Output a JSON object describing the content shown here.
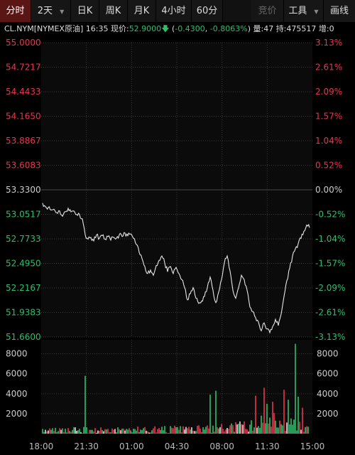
{
  "toolbar": {
    "tabs": [
      {
        "label": "分时",
        "active": true
      },
      {
        "label": "2天",
        "has_dropdown": true
      },
      {
        "label": "日K"
      },
      {
        "label": "周K"
      },
      {
        "label": "月K"
      },
      {
        "label": "4小时"
      },
      {
        "label": "60分"
      }
    ],
    "right": [
      {
        "label": "竞价",
        "disabled": true
      },
      {
        "label": "工具",
        "has_dropdown": true
      },
      {
        "label": "画线"
      }
    ]
  },
  "info": {
    "symbol": "CL.NYM[NYMEX原油]",
    "time": "16:35",
    "price_label": "现价:",
    "price": "52.9000",
    "arrow": "down",
    "change_open": "(",
    "change": "-0.4300",
    "pct_change": "-0.8063%",
    "change_close": ")",
    "volume": "量:47",
    "open_interest": "持:475517",
    "increase": "增:0"
  },
  "colors": {
    "up": "#e8364b",
    "down": "#2fbf6b",
    "neutral": "#cccccc",
    "price_line": "#e6e6e6",
    "grid": "#3a3a3a"
  },
  "chart_data": {
    "type": "line",
    "price_axis": {
      "left_labels": [
        "55.0000",
        "54.7217",
        "54.4433",
        "54.1650",
        "53.8867",
        "53.6083",
        "53.3300",
        "53.0517",
        "52.7733",
        "52.4950",
        "52.2167",
        "51.9383",
        "51.6600"
      ],
      "right_labels": [
        "3.13%",
        "2.61%",
        "2.09%",
        "1.57%",
        "1.04%",
        "0.52%",
        "0.00%",
        "-0.52%",
        "-1.04%",
        "-1.57%",
        "-2.09%",
        "-2.61%",
        "-3.13%"
      ],
      "ylim": [
        51.66,
        55.0
      ],
      "reference": 53.33
    },
    "volume_axis": {
      "labels": [
        "8000",
        "6000",
        "4000",
        "2000"
      ],
      "ticks": [
        8000,
        6000,
        4000,
        2000
      ],
      "ylim": [
        0,
        9400
      ]
    },
    "x_labels": [
      "18:00",
      "21:30",
      "01:00",
      "04:30",
      "08:00",
      "11:30",
      "15:00"
    ],
    "price": [
      [
        0,
        53.18
      ],
      [
        2,
        53.14
      ],
      [
        4,
        53.13
      ],
      [
        6,
        53.1
      ],
      [
        8,
        53.11
      ],
      [
        10,
        53.07
      ],
      [
        12,
        53.09
      ],
      [
        14,
        53.03
      ],
      [
        16,
        53.08
      ],
      [
        18,
        53.12
      ],
      [
        20,
        53.08
      ],
      [
        22,
        53.09
      ],
      [
        24,
        53.05
      ],
      [
        26,
        53.05
      ],
      [
        28,
        53.0
      ],
      [
        30,
        52.82
      ],
      [
        32,
        52.77
      ],
      [
        34,
        52.79
      ],
      [
        36,
        52.75
      ],
      [
        38,
        52.82
      ],
      [
        40,
        52.78
      ],
      [
        42,
        52.81
      ],
      [
        44,
        52.77
      ],
      [
        46,
        52.8
      ],
      [
        48,
        52.76
      ],
      [
        50,
        52.79
      ],
      [
        52,
        52.78
      ],
      [
        54,
        52.82
      ],
      [
        56,
        52.8
      ],
      [
        58,
        52.84
      ],
      [
        60,
        52.81
      ],
      [
        62,
        52.83
      ],
      [
        64,
        52.78
      ],
      [
        66,
        52.71
      ],
      [
        68,
        52.62
      ],
      [
        70,
        52.55
      ],
      [
        72,
        52.46
      ],
      [
        74,
        52.38
      ],
      [
        76,
        52.42
      ],
      [
        78,
        52.36
      ],
      [
        80,
        52.47
      ],
      [
        82,
        52.53
      ],
      [
        84,
        52.58
      ],
      [
        86,
        52.5
      ],
      [
        88,
        52.4
      ],
      [
        90,
        52.46
      ],
      [
        92,
        52.38
      ],
      [
        94,
        52.45
      ],
      [
        96,
        52.38
      ],
      [
        98,
        52.31
      ],
      [
        100,
        52.22
      ],
      [
        102,
        52.08
      ],
      [
        104,
        52.15
      ],
      [
        106,
        52.22
      ],
      [
        108,
        52.1
      ],
      [
        110,
        52.04
      ],
      [
        112,
        52.07
      ],
      [
        114,
        52.12
      ],
      [
        116,
        52.22
      ],
      [
        118,
        52.34
      ],
      [
        120,
        52.19
      ],
      [
        122,
        52.05
      ],
      [
        124,
        52.17
      ],
      [
        126,
        52.31
      ],
      [
        128,
        52.5
      ],
      [
        130,
        52.58
      ],
      [
        132,
        52.41
      ],
      [
        134,
        52.19
      ],
      [
        136,
        52.1
      ],
      [
        138,
        52.22
      ],
      [
        140,
        52.36
      ],
      [
        142,
        52.31
      ],
      [
        144,
        52.19
      ],
      [
        146,
        52.0
      ],
      [
        148,
        51.95
      ],
      [
        150,
        51.88
      ],
      [
        152,
        51.83
      ],
      [
        154,
        51.73
      ],
      [
        156,
        51.82
      ],
      [
        158,
        51.75
      ],
      [
        160,
        51.71
      ],
      [
        162,
        51.78
      ],
      [
        164,
        51.86
      ],
      [
        166,
        51.79
      ],
      [
        168,
        51.92
      ],
      [
        170,
        52.12
      ],
      [
        172,
        52.3
      ],
      [
        174,
        52.44
      ],
      [
        176,
        52.58
      ],
      [
        178,
        52.66
      ],
      [
        180,
        52.72
      ],
      [
        182,
        52.78
      ],
      [
        184,
        52.86
      ],
      [
        186,
        52.93
      ],
      [
        188,
        52.9
      ]
    ],
    "volume": {
      "count": 188,
      "base": 250,
      "amplitude": [
        [
          0,
          0.7
        ],
        [
          120,
          1.0
        ],
        [
          152,
          1.8
        ],
        [
          160,
          3.2
        ],
        [
          175,
          2.0
        ],
        [
          188,
          0.9
        ]
      ],
      "spikes": [
        {
          "x": 30,
          "v": 5800,
          "dir": "down"
        },
        {
          "x": 118,
          "v": 3900,
          "dir": "down"
        },
        {
          "x": 122,
          "v": 4300,
          "dir": "down"
        },
        {
          "x": 150,
          "v": 3800,
          "dir": "up"
        },
        {
          "x": 156,
          "v": 4600,
          "dir": "up"
        },
        {
          "x": 158,
          "v": 3000,
          "dir": "down"
        },
        {
          "x": 162,
          "v": 3200,
          "dir": "up"
        },
        {
          "x": 170,
          "v": 4400,
          "dir": "up"
        },
        {
          "x": 173,
          "v": 3400,
          "dir": "down"
        },
        {
          "x": 178,
          "v": 9000,
          "dir": "down"
        },
        {
          "x": 180,
          "v": 3700,
          "dir": "down"
        },
        {
          "x": 183,
          "v": 2600,
          "dir": "up"
        }
      ]
    }
  }
}
